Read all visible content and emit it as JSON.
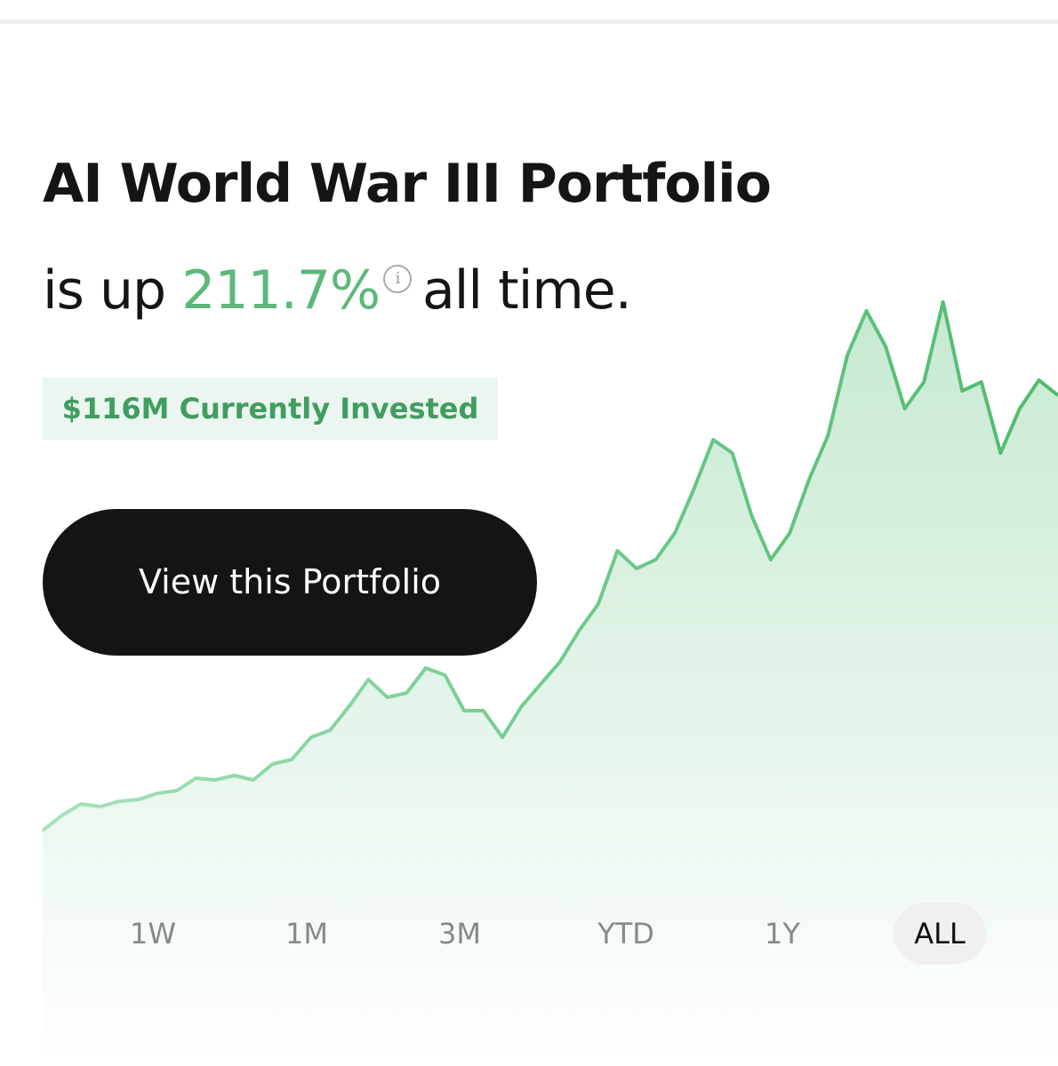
{
  "header": {
    "title": "AI World War III Portfolio",
    "prefix": "is up",
    "gain": "211.7%",
    "suffix": "all time."
  },
  "badge": "$116M Currently Invested",
  "button": "View this Portfolio",
  "ranges": {
    "items": [
      "1W",
      "1M",
      "3M",
      "YTD",
      "1Y",
      "ALL"
    ],
    "selected_index": 5
  },
  "chart_data": {
    "type": "line",
    "color": "#5cbf7c",
    "values": [
      65,
      82,
      95,
      92,
      98,
      100,
      107,
      110,
      124,
      122,
      127,
      122,
      140,
      145,
      170,
      178,
      205,
      235,
      215,
      220,
      248,
      240,
      200,
      200,
      170,
      205,
      230,
      255,
      290,
      320,
      380,
      360,
      370,
      400,
      450,
      505,
      490,
      420,
      370,
      400,
      460,
      510,
      600,
      650,
      610,
      540,
      570,
      660,
      560,
      570,
      490,
      540,
      572,
      555
    ],
    "ylim": [
      0,
      700
    ]
  }
}
